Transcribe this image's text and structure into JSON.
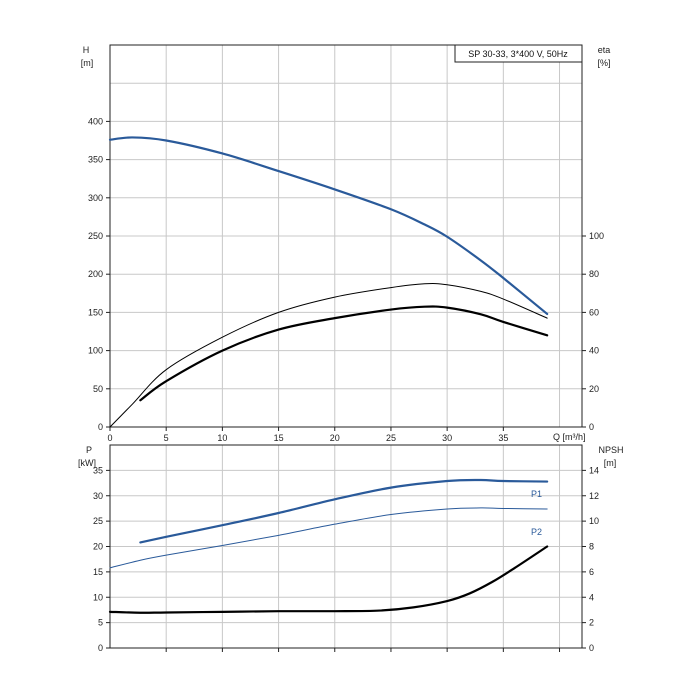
{
  "title_box": "SP 30-33, 3*400 V, 50Hz",
  "colors": {
    "blue": "#2a5a9a",
    "black": "#000000",
    "grid": "#c8c8c8"
  },
  "chart_data": [
    {
      "type": "line",
      "title": "SP 30-33, 3*400 V, 50Hz",
      "x_axis": {
        "label": "Q [m³/h]",
        "ticks": [
          "0",
          "5",
          "10",
          "15",
          "20",
          "25",
          "30",
          "35"
        ],
        "range": [
          0,
          42
        ]
      },
      "y_left": {
        "label_top": "H",
        "label_unit": "[m]",
        "ticks": [
          "0",
          "50",
          "100",
          "150",
          "200",
          "250",
          "300",
          "350",
          "400"
        ],
        "range": [
          0,
          500
        ]
      },
      "y_right": {
        "label_top": "eta",
        "label_unit": "[%]",
        "ticks": [
          "0",
          "20",
          "40",
          "60",
          "80",
          "100"
        ],
        "range": [
          0,
          200
        ]
      },
      "grid": true,
      "series": [
        {
          "axis": "left",
          "color": "#2a5a9a",
          "width": 2.2,
          "x": [
            0,
            2,
            5,
            10,
            15,
            20,
            25,
            28,
            30,
            33,
            35,
            38.9
          ],
          "y": [
            376,
            379,
            375,
            358,
            335,
            311,
            285,
            265,
            249,
            218,
            195,
            148
          ]
        },
        {
          "axis": "right",
          "color": "#000000",
          "width": 1.0,
          "x": [
            0,
            2,
            5,
            10,
            15,
            20,
            25,
            28,
            30,
            33,
            35,
            38.9
          ],
          "y": [
            0,
            12,
            30,
            47,
            60,
            68,
            73,
            75,
            74.5,
            71,
            67,
            57
          ]
        },
        {
          "axis": "right",
          "color": "#000000",
          "width": 2.2,
          "x": [
            2.7,
            5,
            10,
            15,
            20,
            25,
            28,
            30,
            33,
            35,
            38.9
          ],
          "y": [
            14,
            24,
            40,
            51,
            57,
            61.5,
            63,
            62.5,
            59,
            55,
            48
          ]
        }
      ]
    },
    {
      "type": "line",
      "x_axis": {
        "ticks": [],
        "range": [
          0,
          42
        ]
      },
      "y_left": {
        "label_top": "P",
        "label_unit": "[kW]",
        "ticks": [
          "0",
          "5",
          "10",
          "15",
          "20",
          "25",
          "30",
          "35"
        ],
        "range": [
          0,
          40
        ]
      },
      "y_right": {
        "label_top": "NPSH",
        "label_unit": "[m]",
        "ticks": [
          "0",
          "2",
          "4",
          "6",
          "8",
          "10",
          "12",
          "14"
        ],
        "range": [
          0,
          16
        ]
      },
      "grid": true,
      "series": [
        {
          "name": "P1",
          "axis": "left",
          "color": "#2a5a9a",
          "width": 2.2,
          "x": [
            2.7,
            5,
            10,
            15,
            20,
            25,
            30,
            33,
            35,
            38.9
          ],
          "y": [
            20.8,
            21.9,
            24.2,
            26.6,
            29.3,
            31.6,
            32.9,
            33.1,
            32.9,
            32.8
          ]
        },
        {
          "name": "P2",
          "axis": "left",
          "color": "#2a5a9a",
          "width": 1.0,
          "x": [
            0,
            2.7,
            5,
            10,
            15,
            20,
            25,
            30,
            33,
            35,
            38.9
          ],
          "y": [
            15.8,
            17.3,
            18.3,
            20.2,
            22.2,
            24.4,
            26.3,
            27.4,
            27.6,
            27.5,
            27.4
          ]
        },
        {
          "axis": "right",
          "color": "#000000",
          "width": 2.2,
          "x": [
            0,
            2.7,
            5,
            10,
            15,
            20,
            24,
            27,
            30,
            32,
            34,
            36,
            38.9
          ],
          "y": [
            2.85,
            2.78,
            2.8,
            2.85,
            2.9,
            2.9,
            2.95,
            3.2,
            3.7,
            4.3,
            5.2,
            6.3,
            8.0
          ]
        }
      ]
    }
  ]
}
